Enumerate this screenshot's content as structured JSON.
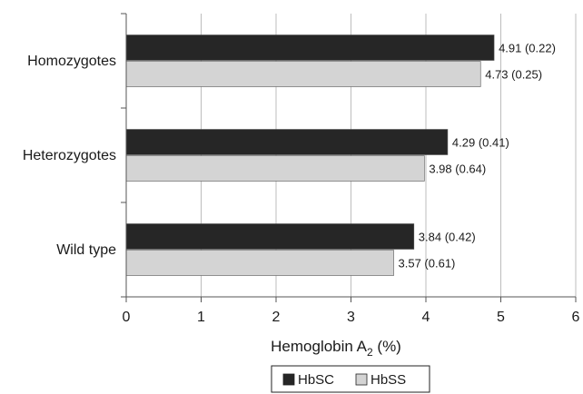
{
  "chart_data": {
    "type": "bar",
    "orientation": "horizontal",
    "categories": [
      "Homozygotes",
      "Heterozygotes",
      "Wild type"
    ],
    "series": [
      {
        "name": "HbSC",
        "values": [
          4.91,
          4.29,
          3.84
        ],
        "labels": [
          "4.91 (0.22)",
          "4.29 (0.41)",
          "3.84 (0.42)"
        ],
        "color": "#262626"
      },
      {
        "name": "HbSS",
        "values": [
          4.73,
          3.98,
          3.57
        ],
        "labels": [
          "4.73 (0.25)",
          "3.98 (0.64)",
          "3.57 (0.61)"
        ],
        "color": "#d4d4d4"
      }
    ],
    "xlabel": "Hemoglobin A",
    "xlabel_subscript": "2",
    "xlabel_unit": "(%)",
    "xlim": [
      0,
      6
    ],
    "xticks": [
      "0",
      "1",
      "2",
      "3",
      "4",
      "5",
      "6"
    ],
    "grid": "vertical",
    "legend_position": "bottom"
  }
}
